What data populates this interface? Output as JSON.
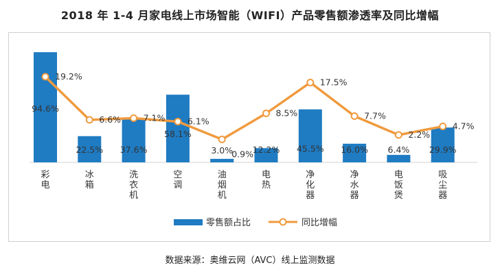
{
  "title": "2018 年 1-4 月家电线上市场智能（WIFI）产品零售额渗透率及同比增幅",
  "source": "数据来源：奥维云网（AVC）线上监测数据",
  "colors": {
    "bar": "#1F7BC2",
    "line": "#F09A3E",
    "text": "#333333"
  },
  "chart_data": {
    "type": "bar",
    "categories": [
      "彩电",
      "冰箱",
      "洗衣机",
      "空调",
      "油烟机",
      "电热",
      "净化器",
      "净水器",
      "电饭煲",
      "吸尘器"
    ],
    "series": [
      {
        "name": "零售额占比",
        "type": "bar",
        "values": [
          94.6,
          22.5,
          37.6,
          58.1,
          3.0,
          12.2,
          45.5,
          16.0,
          6.4,
          29.9
        ],
        "labels": [
          "94.6%",
          "22.5%",
          "37.6%",
          "58.1%",
          "3.0%",
          "12.2%",
          "45.5%",
          "16.0%",
          "6.4%",
          "29.9%"
        ]
      },
      {
        "name": "同比增幅",
        "type": "line",
        "values": [
          19.2,
          6.6,
          7.1,
          6.1,
          0.9,
          8.5,
          17.5,
          7.7,
          2.2,
          4.7
        ],
        "labels": [
          "19.2%",
          "6.6%",
          "7.1%",
          "6.1%",
          "0.9%",
          "8.5%",
          "17.5%",
          "7.7%",
          "2.2%",
          "4.7%"
        ]
      }
    ],
    "legend_position": "bottom"
  }
}
